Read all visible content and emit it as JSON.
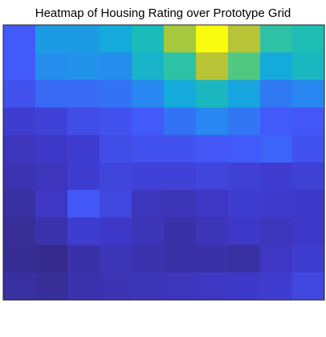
{
  "chart_data": {
    "type": "heatmap",
    "title": "Heatmap of Housing Rating over Prototype Grid",
    "xlabel": "",
    "ylabel": "",
    "rows": 10,
    "cols": 10,
    "colormap": "parula",
    "value_range": [
      0,
      1
    ],
    "values": [
      [
        0.25,
        0.45,
        0.45,
        0.5,
        0.6,
        0.82,
        1.0,
        0.85,
        0.65,
        0.62
      ],
      [
        0.25,
        0.4,
        0.42,
        0.4,
        0.55,
        0.65,
        0.85,
        0.72,
        0.5,
        0.58
      ],
      [
        0.22,
        0.3,
        0.3,
        0.32,
        0.38,
        0.5,
        0.58,
        0.48,
        0.34,
        0.38
      ],
      [
        0.14,
        0.16,
        0.2,
        0.22,
        0.25,
        0.32,
        0.38,
        0.33,
        0.25,
        0.24
      ],
      [
        0.1,
        0.12,
        0.14,
        0.2,
        0.22,
        0.22,
        0.24,
        0.25,
        0.28,
        0.22
      ],
      [
        0.08,
        0.1,
        0.14,
        0.17,
        0.16,
        0.16,
        0.17,
        0.15,
        0.14,
        0.15
      ],
      [
        0.05,
        0.11,
        0.24,
        0.18,
        0.1,
        0.09,
        0.11,
        0.14,
        0.13,
        0.12
      ],
      [
        0.03,
        0.07,
        0.14,
        0.12,
        0.09,
        0.06,
        0.09,
        0.12,
        0.1,
        0.12
      ],
      [
        0.02,
        0.01,
        0.06,
        0.09,
        0.07,
        0.06,
        0.06,
        0.05,
        0.11,
        0.14
      ],
      [
        0.05,
        0.03,
        0.07,
        0.08,
        0.09,
        0.1,
        0.11,
        0.12,
        0.14,
        0.18
      ]
    ]
  }
}
